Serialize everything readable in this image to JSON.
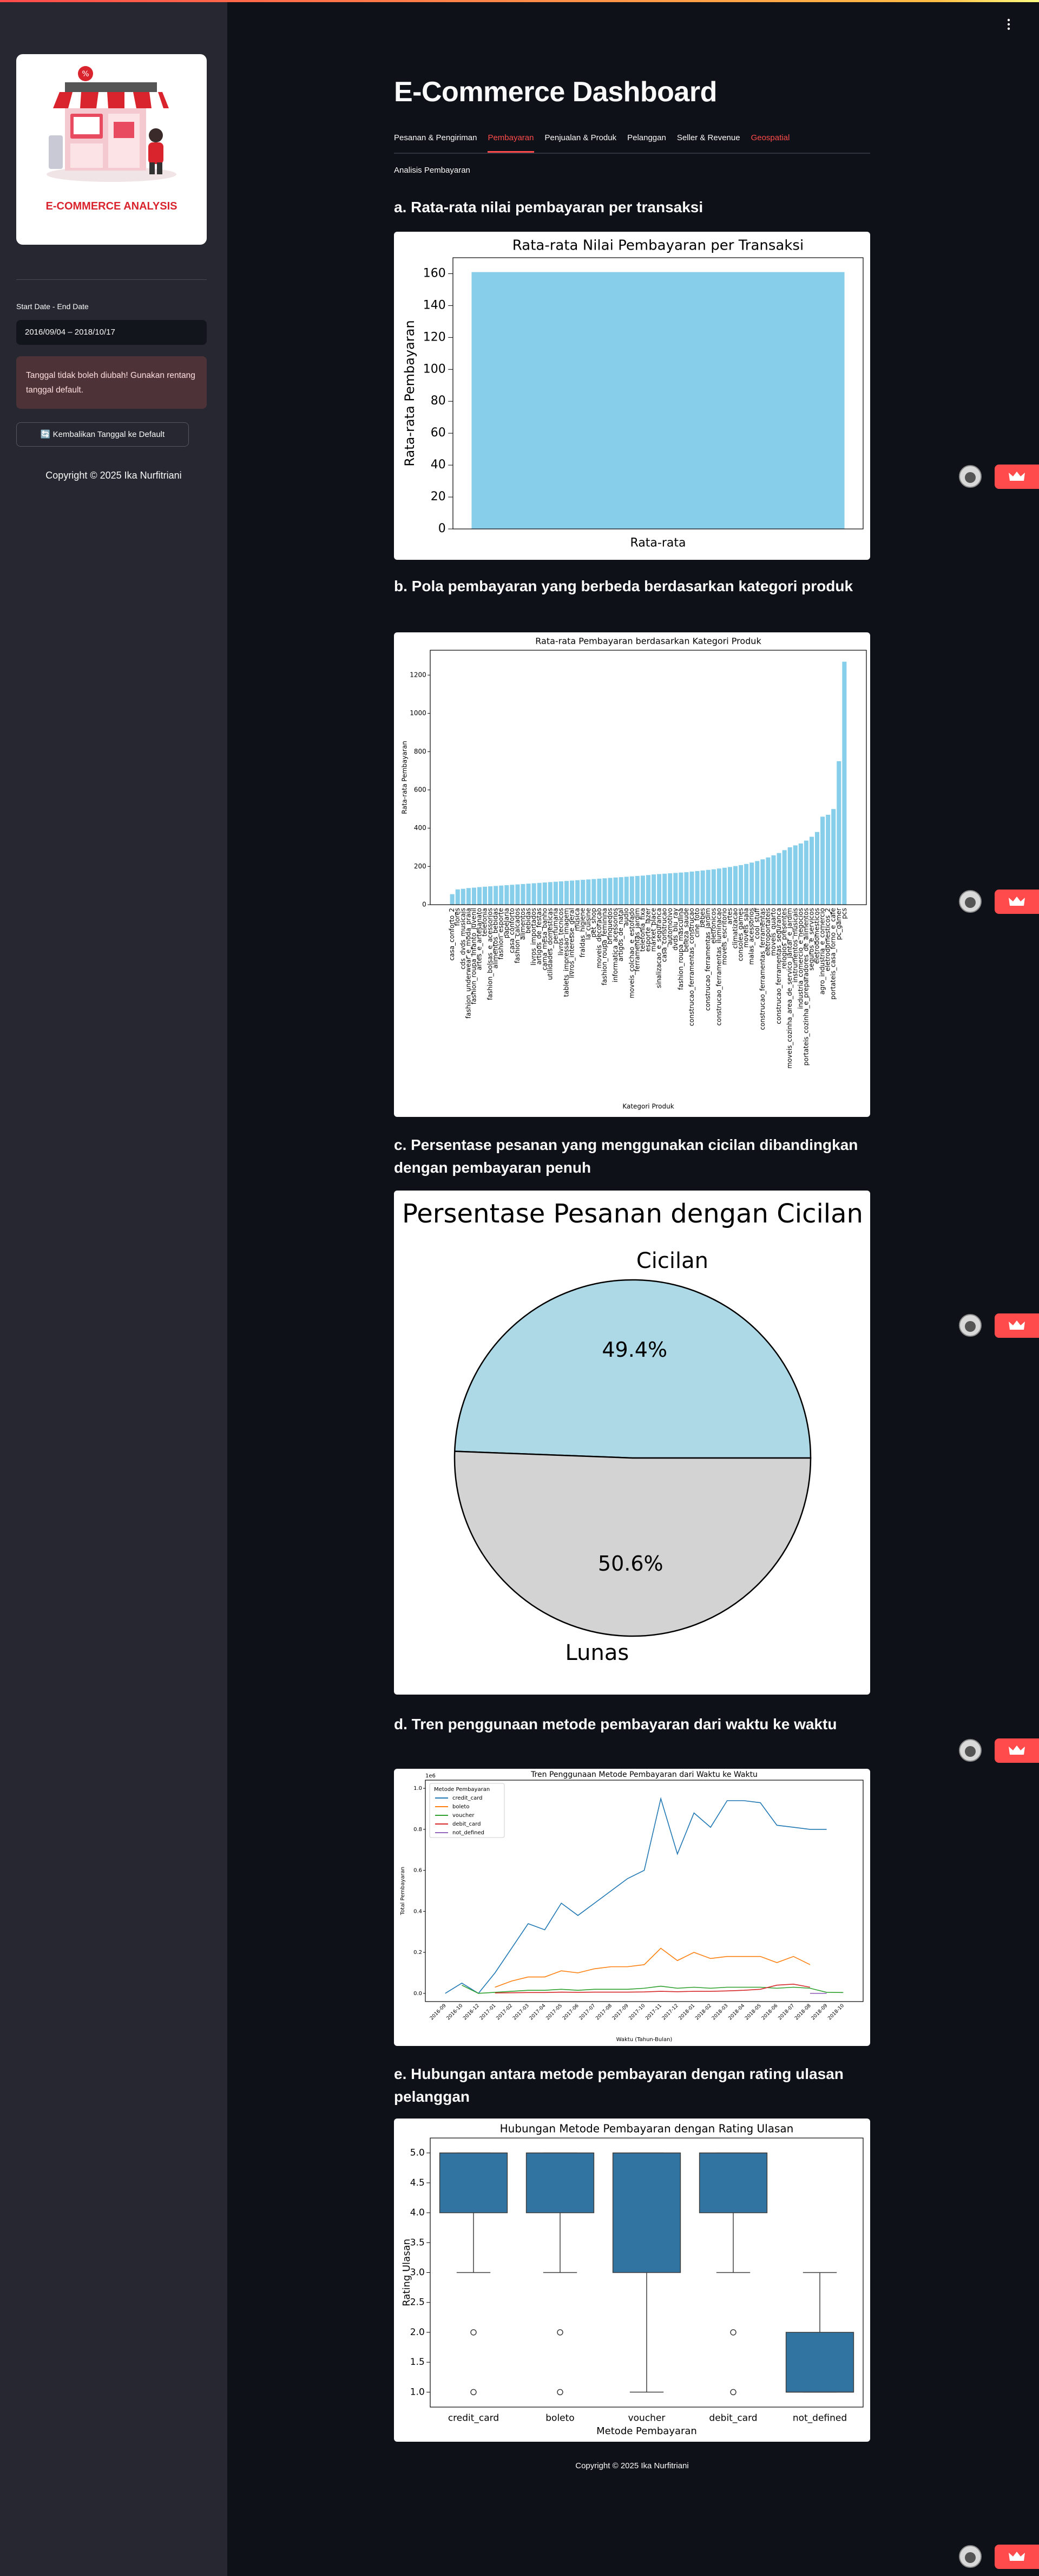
{
  "sidebar": {
    "logo_text": "E-COMMERCE ANALYSIS",
    "date_label": "Start Date - End Date",
    "date_value": "2016/09/04 – 2018/10/17",
    "warning": "Tanggal tidak boleh diubah! Gunakan rentang tanggal default.",
    "button": "🔄 Kembalikan Tanggal ke Default",
    "copyright": "Copyright © 2025 Ika Nurfitriani"
  },
  "header": {
    "title": "E-Commerce Dashboard",
    "tabs": [
      "Pesanan & Pengiriman",
      "Pembayaran",
      "Penjualan & Produk",
      "Pelanggan",
      "Seller & Revenue",
      "Geospatial"
    ],
    "section": "Analisis Pembayaran"
  },
  "headings": [
    "a. Rata-rata nilai pembayaran per transaksi",
    "b. Pola pembayaran yang berbeda berdasarkan kategori produk",
    "c. Persentase pesanan yang menggunakan cicilan dibandingkan dengan pembayaran penuh",
    "d. Tren penggunaan metode pembayaran dari waktu ke waktu",
    "e. Hubungan antara metode pembayaran dengan rating ulasan pelanggan"
  ],
  "chart_data": [
    {
      "type": "bar",
      "title": "Rata-rata Nilai Pembayaran per Transaksi",
      "ylabel": "Rata-rata Pembayaran",
      "categories": [
        "Rata-rata"
      ],
      "values": [
        161
      ],
      "color": "#87ceeb",
      "ylim": [
        0,
        170
      ],
      "yticks": [
        0,
        20,
        40,
        60,
        80,
        100,
        120,
        140,
        160
      ]
    },
    {
      "type": "bar",
      "title": "Rata-rata Pembayaran berdasarkan Kategori Produk",
      "xlabel": "Kategori Produk",
      "ylabel": "Rata-rata Pembayaran",
      "color": "#87ceeb",
      "ylim": [
        0,
        1330
      ],
      "yticks": [
        0,
        200,
        400,
        600,
        800,
        1000,
        1200
      ],
      "categories": [
        "casa_conforto_2",
        "flores",
        "cds_dvds_musicais",
        "fashion_underwear_e_moda_praia",
        "fashion_roupa_infanto_juvenil",
        "artes_e_artesanato",
        "telefonia",
        "fashion_bolsas_e_acessorios",
        "alimentos_bebidas",
        "fashion_esporte",
        "papelaria",
        "casa_conforto",
        "fashion_calcados",
        "alimentos",
        "bebidas",
        "livros_importados",
        "artigos_de_festas",
        "cama_mesa_banho",
        "utilidades_domesticas",
        "perfumaria",
        "livros_tecnicos",
        "tablets_impressao_imagem",
        "livros_interesse_geral",
        "musica",
        "fraldas_higiene",
        "la_cuisine",
        "pet_shop",
        "moveis_decoracao",
        "fashion_roupa_feminina",
        "brinquedos",
        "informatica_acessorios",
        "artigos_de_natal",
        "audio",
        "moveis_colchao_e_estofado",
        "ferramentas_jardim",
        "telefonia_fixa",
        "esporte_lazer",
        "market_place",
        "sinalizacao_e_seguranca",
        "casa_construcao",
        "automotivo",
        "dvds_blu_ray",
        "fashion_roupa_masculina",
        "beleza_saude",
        "construcao_ferramentas_construcao",
        "cine_foto",
        "bebes",
        "construcao_ferramentas_jardim",
        "eletronicos",
        "construcao_ferramentas_iluminacao",
        "moveis_escritorio",
        "artes",
        "climatizacao",
        "consoles_games",
        "moveis_sala",
        "malas_acessorios",
        "cool_stuff",
        "construcao_ferramentas_ferramentas",
        "eletroportateis",
        "moveis_quarto",
        "construcao_ferramentas_seguranca",
        "relogios_presentes",
        "moveis_cozinha_area_de_servico_jantar_e_jardim",
        "instrumentos_musicais",
        "industria_comercio_e_negocios",
        "portateis_cozinha_e_preparadores_de_alimentos",
        "seguros_e_servicos",
        "eletrodomesticos",
        "agro_industria_e_comercio",
        "eletrodomesticos_2",
        "portateis_casa_forno_e_cafe",
        "pc_gamer",
        "pcs"
      ],
      "values": [
        55,
        80,
        83,
        87,
        89,
        92,
        94,
        96,
        98,
        100,
        102,
        104,
        106,
        108,
        110,
        112,
        114,
        116,
        118,
        120,
        122,
        124,
        126,
        128,
        130,
        132,
        134,
        136,
        138,
        140,
        142,
        144,
        146,
        148,
        150,
        152,
        155,
        158,
        160,
        162,
        164,
        166,
        168,
        170,
        173,
        176,
        179,
        182,
        185,
        189,
        193,
        197,
        202,
        207,
        213,
        220,
        228,
        237,
        247,
        258,
        270,
        285,
        300,
        310,
        320,
        335,
        355,
        380,
        460,
        470,
        500,
        750,
        1270
      ]
    },
    {
      "type": "pie",
      "title": "Persentase Pesanan dengan Cicilan",
      "categories": [
        "Cicilan",
        "Lunas"
      ],
      "values": [
        49.4,
        50.6
      ],
      "value_labels": [
        "49.4%",
        "50.6%"
      ],
      "colors": [
        "#add8e6",
        "#d3d3d3"
      ]
    },
    {
      "type": "line",
      "title": "Tren Penggunaan Metode Pembayaran dari Waktu ke Waktu",
      "xlabel": "Waktu (Tahun-Bulan)",
      "ylabel": "Total Pembayaran",
      "y_offset_label": "1e6",
      "legend_title": "Metode Pembayaran",
      "legend": "upper left",
      "x": [
        "2016-09",
        "2016-10",
        "2016-12",
        "2017-01",
        "2017-02",
        "2017-03",
        "2017-04",
        "2017-05",
        "2017-06",
        "2017-07",
        "2017-08",
        "2017-09",
        "2017-10",
        "2017-11",
        "2017-12",
        "2018-01",
        "2018-02",
        "2018-03",
        "2018-04",
        "2018-05",
        "2018-06",
        "2018-07",
        "2018-08",
        "2018-09",
        "2018-10"
      ],
      "ylim": [
        -0.04,
        1.04
      ],
      "yticks": [
        {
          "value": 0,
          "label": "0.0"
        },
        {
          "value": 0.2,
          "label": "0.2"
        },
        {
          "value": 0.4,
          "label": "0.4"
        },
        {
          "value": 0.6,
          "label": "0.6"
        },
        {
          "value": 0.8,
          "label": "0.8"
        },
        {
          "value": 1,
          "label": "1.0"
        }
      ],
      "series": [
        {
          "name": "credit_card",
          "color": "#1f77b4",
          "values": [
            0.0,
            0.05,
            0.0,
            0.1,
            0.22,
            0.34,
            0.31,
            0.44,
            0.38,
            0.44,
            0.5,
            0.56,
            0.6,
            0.95,
            0.68,
            0.88,
            0.81,
            0.94,
            0.94,
            0.93,
            0.82,
            0.81,
            0.8,
            0.8,
            null
          ]
        },
        {
          "name": "boleto",
          "color": "#ff7f0e",
          "values": [
            null,
            0.0,
            null,
            0.03,
            0.06,
            0.08,
            0.08,
            0.11,
            0.1,
            0.12,
            0.13,
            0.13,
            0.14,
            0.22,
            0.16,
            0.2,
            0.17,
            0.18,
            0.18,
            0.18,
            0.15,
            0.18,
            0.14,
            null,
            null
          ]
        },
        {
          "name": "voucher",
          "color": "#2ca02c",
          "values": [
            null,
            0.04,
            0.0,
            0.005,
            0.01,
            0.015,
            0.015,
            0.02,
            0.015,
            0.02,
            0.02,
            0.02,
            0.025,
            0.035,
            0.025,
            0.03,
            0.025,
            0.03,
            0.03,
            0.03,
            0.025,
            0.03,
            0.025,
            0.005,
            0.004
          ]
        },
        {
          "name": "debit_card",
          "color": "#d62728",
          "values": [
            null,
            0.005,
            null,
            0.002,
            0.003,
            0.004,
            0.004,
            0.006,
            0.005,
            0.006,
            0.006,
            0.006,
            0.007,
            0.01,
            0.008,
            0.01,
            0.01,
            0.012,
            0.015,
            0.02,
            0.04,
            0.045,
            0.03,
            null,
            null
          ]
        },
        {
          "name": "not_defined",
          "color": "#9467bd",
          "values": [
            null,
            null,
            null,
            null,
            null,
            null,
            null,
            null,
            null,
            null,
            null,
            null,
            null,
            null,
            null,
            null,
            null,
            null,
            null,
            null,
            null,
            null,
            0.0,
            0.0,
            null
          ]
        }
      ]
    },
    {
      "type": "box",
      "title": "Hubungan Metode Pembayaran dengan Rating Ulasan",
      "xlabel": "Metode Pembayaran",
      "ylabel": "Rating Ulasan",
      "color": "#3274a1",
      "categories": [
        "credit_card",
        "boleto",
        "voucher",
        "debit_card",
        "not_defined"
      ],
      "ylim": [
        0.75,
        5.25
      ],
      "yticks": [
        {
          "value": 1,
          "label": "1.0"
        },
        {
          "value": 1.5,
          "label": "1.5"
        },
        {
          "value": 2,
          "label": "2.0"
        },
        {
          "value": 2.5,
          "label": "2.5"
        },
        {
          "value": 3,
          "label": "3.0"
        },
        {
          "value": 3.5,
          "label": "3.5"
        },
        {
          "value": 4,
          "label": "4.0"
        },
        {
          "value": 4.5,
          "label": "4.5"
        },
        {
          "value": 5,
          "label": "5.0"
        }
      ],
      "boxes": [
        {
          "min": 3,
          "q1": 4,
          "median": 5,
          "q3": 5,
          "max": 5,
          "outliers": [
            2,
            1
          ]
        },
        {
          "min": 3,
          "q1": 4,
          "median": 5,
          "q3": 5,
          "max": 5,
          "outliers": [
            2,
            1
          ]
        },
        {
          "min": 1,
          "q1": 3,
          "median": 5,
          "q3": 5,
          "max": 5,
          "outliers": []
        },
        {
          "min": 3,
          "q1": 4,
          "median": 5,
          "q3": 5,
          "max": 5,
          "outliers": [
            2,
            1
          ]
        },
        {
          "min": 1,
          "q1": 1,
          "median": 1,
          "q3": 2,
          "max": 3,
          "outliers": []
        }
      ]
    }
  ],
  "footer": "Copyright © 2025 Ika Nurfitriani"
}
